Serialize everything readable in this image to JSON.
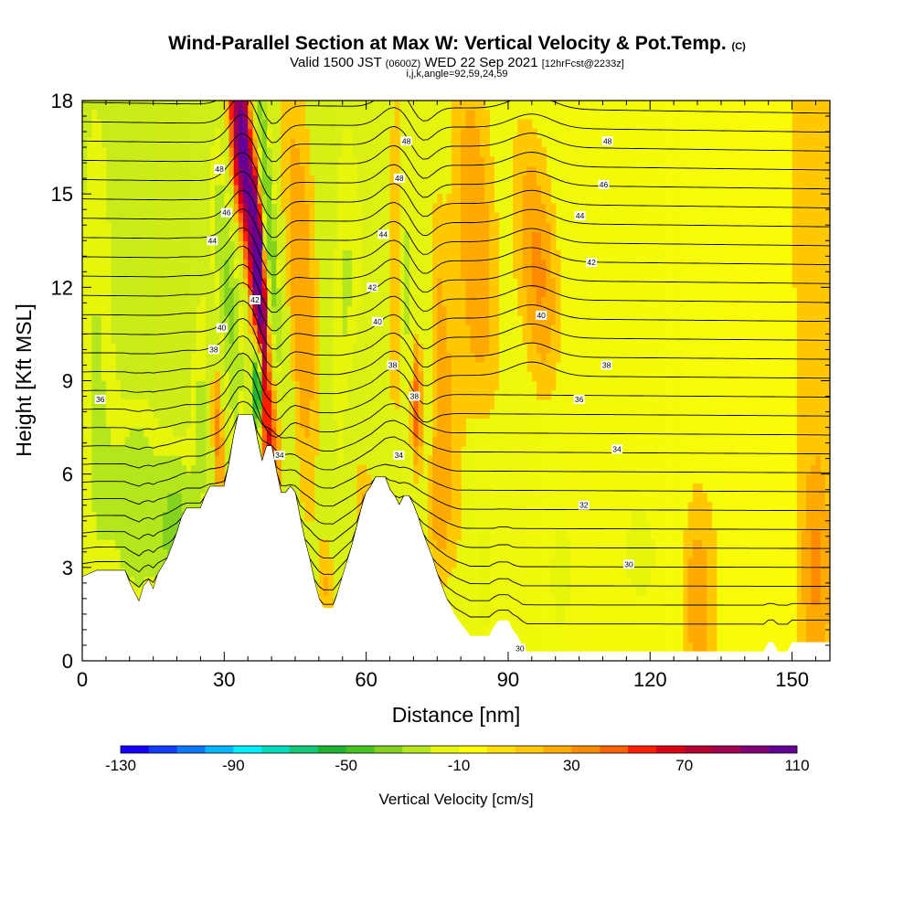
{
  "chart_data": {
    "type": "heatmap",
    "title_main": "Wind-Parallel Section at Max W: Vertical Velocity & Pot.Temp.",
    "title_mark": "(C)",
    "subtitle_main": "Valid 1500 JST",
    "subtitle_z": "(0600Z)",
    "subtitle_date": "WED 22 Sep 2021",
    "subtitle_fcst": "[12hrFcst@2233z]",
    "subtitle2": "i,j,k,angle=92,59,24,59",
    "xlabel": "Distance [nm]",
    "ylabel": "Height [Kft MSL]",
    "xlim": [
      0,
      158
    ],
    "ylim": [
      0,
      18
    ],
    "xticks": [
      0,
      30,
      60,
      90,
      120,
      150
    ],
    "yticks": [
      0,
      3,
      6,
      9,
      12,
      15,
      18
    ],
    "colorbar": {
      "label": "Vertical Velocity [cm/s]",
      "tick_labels": [
        "-130",
        "-90",
        "-50",
        "-10",
        "30",
        "70",
        "110"
      ],
      "tick_values": [
        -130,
        -90,
        -50,
        -10,
        30,
        70,
        110
      ],
      "colors": [
        "#1400ff",
        "#0f3cff",
        "#0a78ff",
        "#05b4ff",
        "#00f0ff",
        "#00dcbe",
        "#14c878",
        "#1eb432",
        "#46c31e",
        "#82d21e",
        "#b4e61e",
        "#e6f50a",
        "#ffff00",
        "#ffe100",
        "#ffc800",
        "#ffaa00",
        "#ff8c00",
        "#ff6400",
        "#ff1e00",
        "#dc0014",
        "#b40032",
        "#a00050",
        "#820078",
        "#640096"
      ]
    },
    "terrain_kft": [
      [
        0,
        2.7
      ],
      [
        3,
        2.9
      ],
      [
        6,
        2.9
      ],
      [
        9,
        2.9
      ],
      [
        10,
        2.5
      ],
      [
        11,
        2.2
      ],
      [
        12,
        1.9
      ],
      [
        13,
        2.4
      ],
      [
        14,
        2.6
      ],
      [
        15,
        2.3
      ],
      [
        16,
        2.8
      ],
      [
        18,
        3.3
      ],
      [
        19,
        3.7
      ],
      [
        20,
        4.1
      ],
      [
        21,
        4.6
      ],
      [
        22,
        4.9
      ],
      [
        25,
        4.9
      ],
      [
        26,
        5.3
      ],
      [
        27,
        5.6
      ],
      [
        28,
        5.6
      ],
      [
        30,
        5.6
      ],
      [
        31,
        6.3
      ],
      [
        32,
        7.2
      ],
      [
        33,
        7.9
      ],
      [
        34,
        7.9
      ],
      [
        36,
        7.9
      ],
      [
        37,
        7.1
      ],
      [
        38,
        6.4
      ],
      [
        39,
        6.9
      ],
      [
        40,
        6.9
      ],
      [
        41,
        6.1
      ],
      [
        42,
        5.4
      ],
      [
        43,
        5.4
      ],
      [
        44,
        5.6
      ],
      [
        45,
        5.4
      ],
      [
        46,
        4.6
      ],
      [
        47,
        3.9
      ],
      [
        48,
        3.3
      ],
      [
        49,
        2.6
      ],
      [
        50,
        2.0
      ],
      [
        51,
        1.7
      ],
      [
        53,
        1.7
      ],
      [
        54,
        2.2
      ],
      [
        55,
        2.7
      ],
      [
        56,
        3.2
      ],
      [
        57,
        3.7
      ],
      [
        58,
        4.3
      ],
      [
        59,
        4.9
      ],
      [
        60,
        5.4
      ],
      [
        61,
        5.6
      ],
      [
        62,
        5.9
      ],
      [
        64,
        5.9
      ],
      [
        65,
        5.5
      ],
      [
        66,
        5.3
      ],
      [
        67,
        5.0
      ],
      [
        68,
        5.3
      ],
      [
        69,
        5.3
      ],
      [
        70,
        5.0
      ],
      [
        71,
        4.6
      ],
      [
        72,
        4.1
      ],
      [
        73,
        3.7
      ],
      [
        74,
        3.3
      ],
      [
        75,
        2.8
      ],
      [
        76,
        2.4
      ],
      [
        77,
        2.0
      ],
      [
        78,
        1.7
      ],
      [
        79,
        1.4
      ],
      [
        80,
        1.2
      ],
      [
        81,
        1.0
      ],
      [
        82,
        0.8
      ],
      [
        86,
        0.8
      ],
      [
        87,
        1.1
      ],
      [
        88,
        1.3
      ],
      [
        90,
        1.3
      ],
      [
        91,
        1.0
      ],
      [
        92,
        0.8
      ],
      [
        93,
        0.5
      ],
      [
        94,
        0.3
      ],
      [
        144,
        0.3
      ],
      [
        145,
        0.6
      ],
      [
        146,
        0.6
      ],
      [
        147,
        0.3
      ],
      [
        149,
        0.3
      ],
      [
        150,
        0.6
      ],
      [
        153,
        0.6
      ],
      [
        158,
        0.6
      ]
    ],
    "theta_contour_labels": [
      {
        "x": 3.8,
        "y": 8.4,
        "v": "36"
      },
      {
        "x": 29,
        "y": 15.8,
        "v": "48"
      },
      {
        "x": 30.5,
        "y": 14.4,
        "v": "46"
      },
      {
        "x": 27.5,
        "y": 13.5,
        "v": "44"
      },
      {
        "x": 36.5,
        "y": 11.6,
        "v": "42"
      },
      {
        "x": 29.5,
        "y": 10.7,
        "v": "40"
      },
      {
        "x": 27.8,
        "y": 10.0,
        "v": "38"
      },
      {
        "x": 41.7,
        "y": 6.6,
        "v": "34"
      },
      {
        "x": 68.5,
        "y": 16.7,
        "v": "48"
      },
      {
        "x": 67,
        "y": 15.5,
        "v": "48"
      },
      {
        "x": 63.6,
        "y": 13.7,
        "v": "44"
      },
      {
        "x": 61.3,
        "y": 12.0,
        "v": "42"
      },
      {
        "x": 62.4,
        "y": 10.9,
        "v": "40"
      },
      {
        "x": 65.6,
        "y": 9.5,
        "v": "38"
      },
      {
        "x": 70.2,
        "y": 8.5,
        "v": "38"
      },
      {
        "x": 66.9,
        "y": 6.6,
        "v": "34"
      },
      {
        "x": 111,
        "y": 16.7,
        "v": "48"
      },
      {
        "x": 110.2,
        "y": 15.3,
        "v": "46"
      },
      {
        "x": 105.2,
        "y": 14.3,
        "v": "44"
      },
      {
        "x": 107.6,
        "y": 12.8,
        "v": "42"
      },
      {
        "x": 97,
        "y": 11.1,
        "v": "40"
      },
      {
        "x": 110.8,
        "y": 9.5,
        "v": "38"
      },
      {
        "x": 105,
        "y": 8.4,
        "v": "36"
      },
      {
        "x": 113,
        "y": 6.8,
        "v": "34"
      },
      {
        "x": 106,
        "y": 5.0,
        "v": "32"
      },
      {
        "x": 115.5,
        "y": 3.1,
        "v": "30"
      },
      {
        "x": 92.5,
        "y": 0.4,
        "v": "30"
      }
    ]
  }
}
